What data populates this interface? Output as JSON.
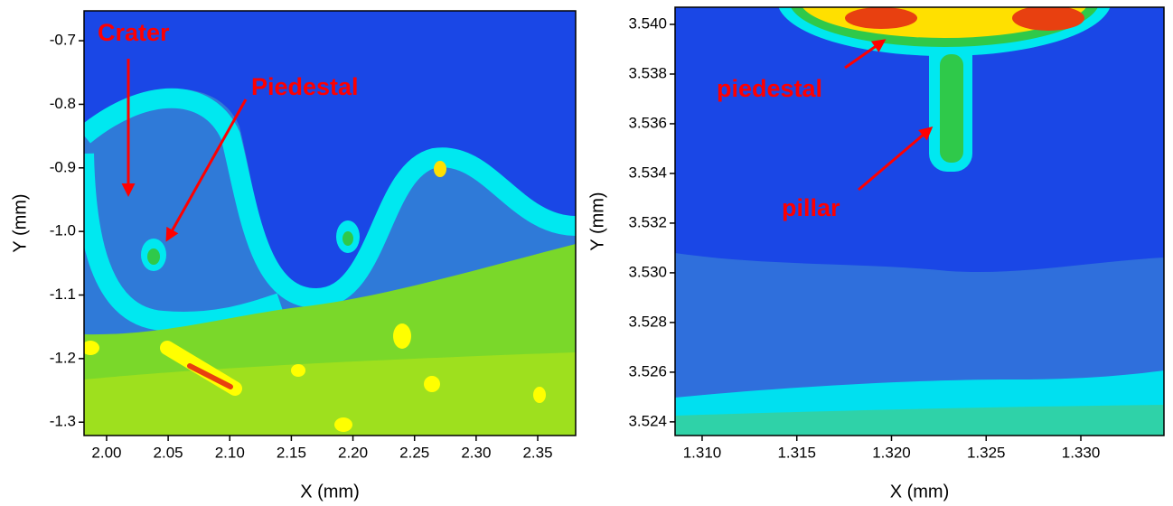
{
  "chart_data": [
    {
      "type": "contour",
      "xlabel": "X (mm)",
      "ylabel": "Y (mm)",
      "xlim": [
        1.9817,
        2.3808
      ],
      "ylim": [
        -1.321,
        -0.653
      ],
      "xticks": [
        {
          "value": 2.0,
          "label": "2.00"
        },
        2.05,
        {
          "value": 2.1,
          "label": "2.10"
        },
        2.15,
        {
          "value": 2.2,
          "label": "2.20"
        },
        2.25,
        {
          "value": 2.3,
          "label": "2.30"
        },
        2.35
      ],
      "yticks": [
        -0.7,
        -0.8,
        -0.9,
        {
          "value": -1.0,
          "label": "-1.0"
        },
        -1.1,
        -1.2,
        -1.3
      ],
      "annotations": [
        "Crater",
        "Piedestal"
      ]
    },
    {
      "type": "contour",
      "xlabel": "X (mm)",
      "ylabel": "Y (mm)",
      "xlim": [
        1.30857,
        1.33439
      ],
      "ylim": [
        3.52345,
        3.54069
      ],
      "xticks": [
        {
          "value": 1.31,
          "label": "1.310"
        },
        1.315,
        {
          "value": 1.32,
          "label": "1.320"
        },
        1.325,
        {
          "value": 1.33,
          "label": "1.330"
        }
      ],
      "yticks": [
        {
          "value": 3.54,
          "label": "3.540"
        },
        3.538,
        3.536,
        3.534,
        3.532,
        {
          "value": 3.53,
          "label": "3.530"
        },
        3.528,
        3.526,
        3.524
      ],
      "annotations": [
        "piedestal",
        "pillar"
      ]
    }
  ]
}
